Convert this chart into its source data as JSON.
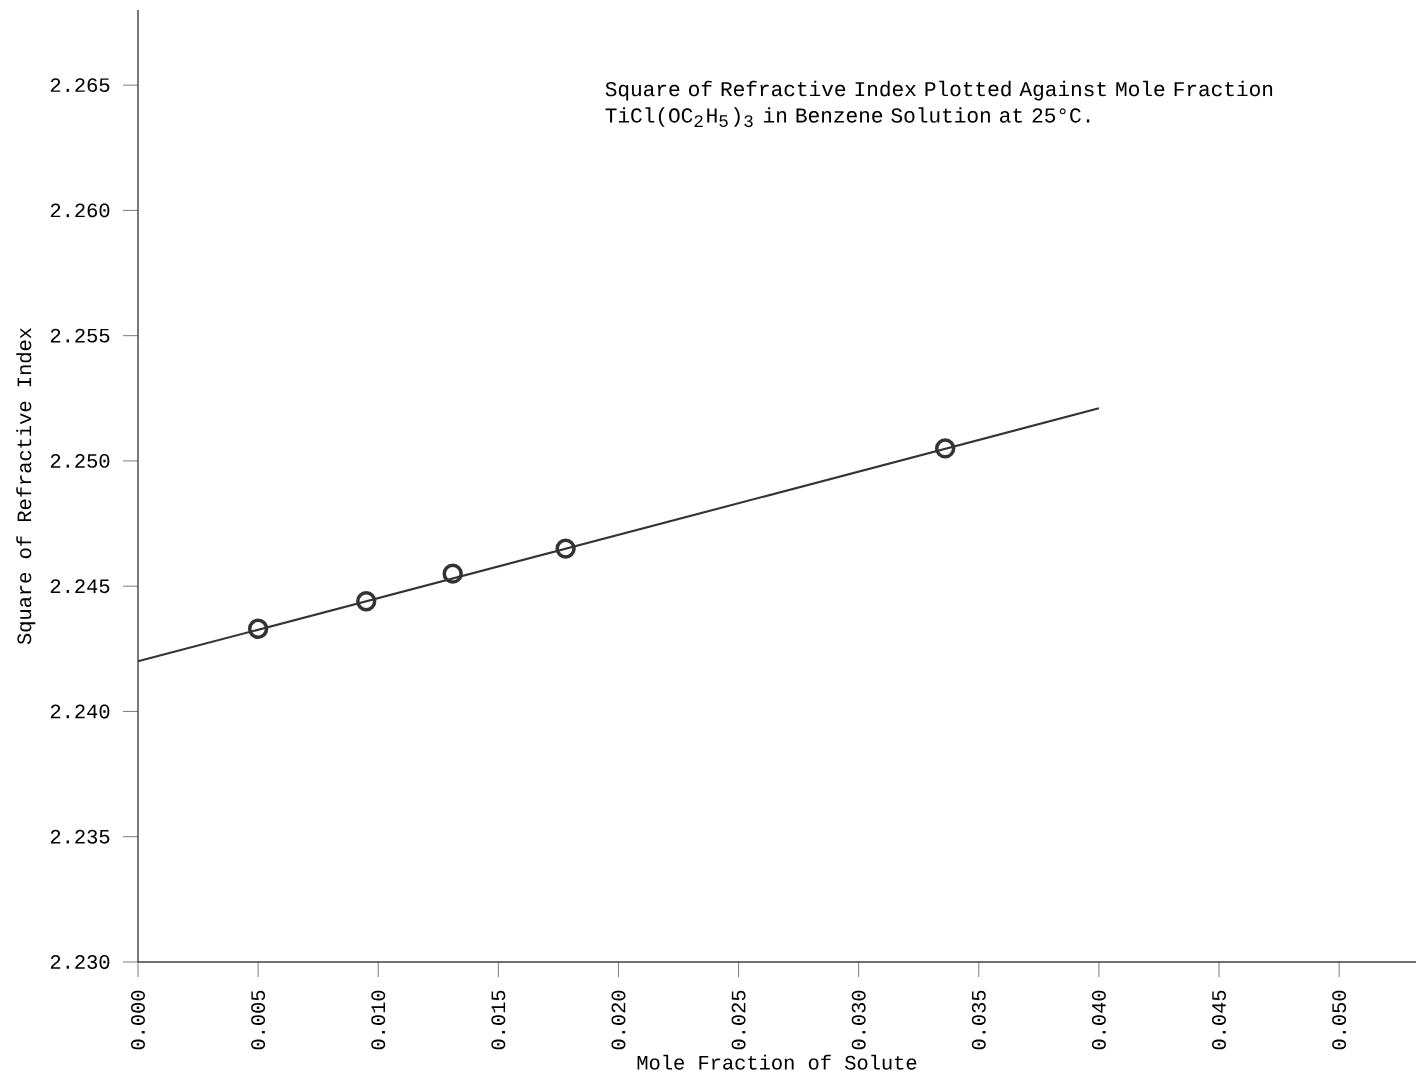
{
  "chart_data": {
    "type": "scatter",
    "title": "Square of Refractive Index Plotted Against Mole Fraction TiCl(OC$_{2}$H$_{5}$)$_{3}$ in Benzene Solution at 25°C.",
    "xlabel": "Mole Fraction of Solute",
    "ylabel": "Square of Refractive Index",
    "xlim": [
      0,
      0.0532
    ],
    "ylim": [
      2.23,
      2.268
    ],
    "xticks": [
      {
        "value": 0,
        "label": "0.000"
      },
      {
        "value": 0.005,
        "label": "0.005"
      },
      {
        "value": 0.01,
        "label": "0.010"
      },
      {
        "value": 0.015,
        "label": "0.015"
      },
      {
        "value": 0.02,
        "label": "0.020"
      },
      {
        "value": 0.025,
        "label": "0.025"
      },
      {
        "value": 0.03,
        "label": "0.030"
      },
      {
        "value": 0.035,
        "label": "0.035"
      },
      {
        "value": 0.04,
        "label": "0.040"
      },
      {
        "value": 0.045,
        "label": "0.045"
      },
      {
        "value": 0.05,
        "label": "0.050"
      }
    ],
    "yticks": [
      {
        "value": 2.23,
        "label": "2.230"
      },
      {
        "value": 2.235,
        "label": "2.235"
      },
      {
        "value": 2.24,
        "label": "2.240"
      },
      {
        "value": 2.245,
        "label": "2.245"
      },
      {
        "value": 2.25,
        "label": "2.250"
      },
      {
        "value": 2.255,
        "label": "2.255"
      },
      {
        "value": 2.26,
        "label": "2.260"
      },
      {
        "value": 2.265,
        "label": "2.265"
      }
    ],
    "grid": false,
    "series": [
      {
        "type": "line",
        "color": "#333333",
        "marker": "none",
        "x": [
          0,
          0.04
        ],
        "values": [
          2.242,
          2.2521
        ]
      },
      {
        "type": "scatter",
        "color": "#333333",
        "marker": "circle",
        "x": [
          0.005,
          0.0095,
          0.0131,
          0.0178,
          0.0336
        ],
        "values": [
          2.2433,
          2.2444,
          2.2455,
          2.2465,
          2.2505
        ]
      }
    ]
  }
}
